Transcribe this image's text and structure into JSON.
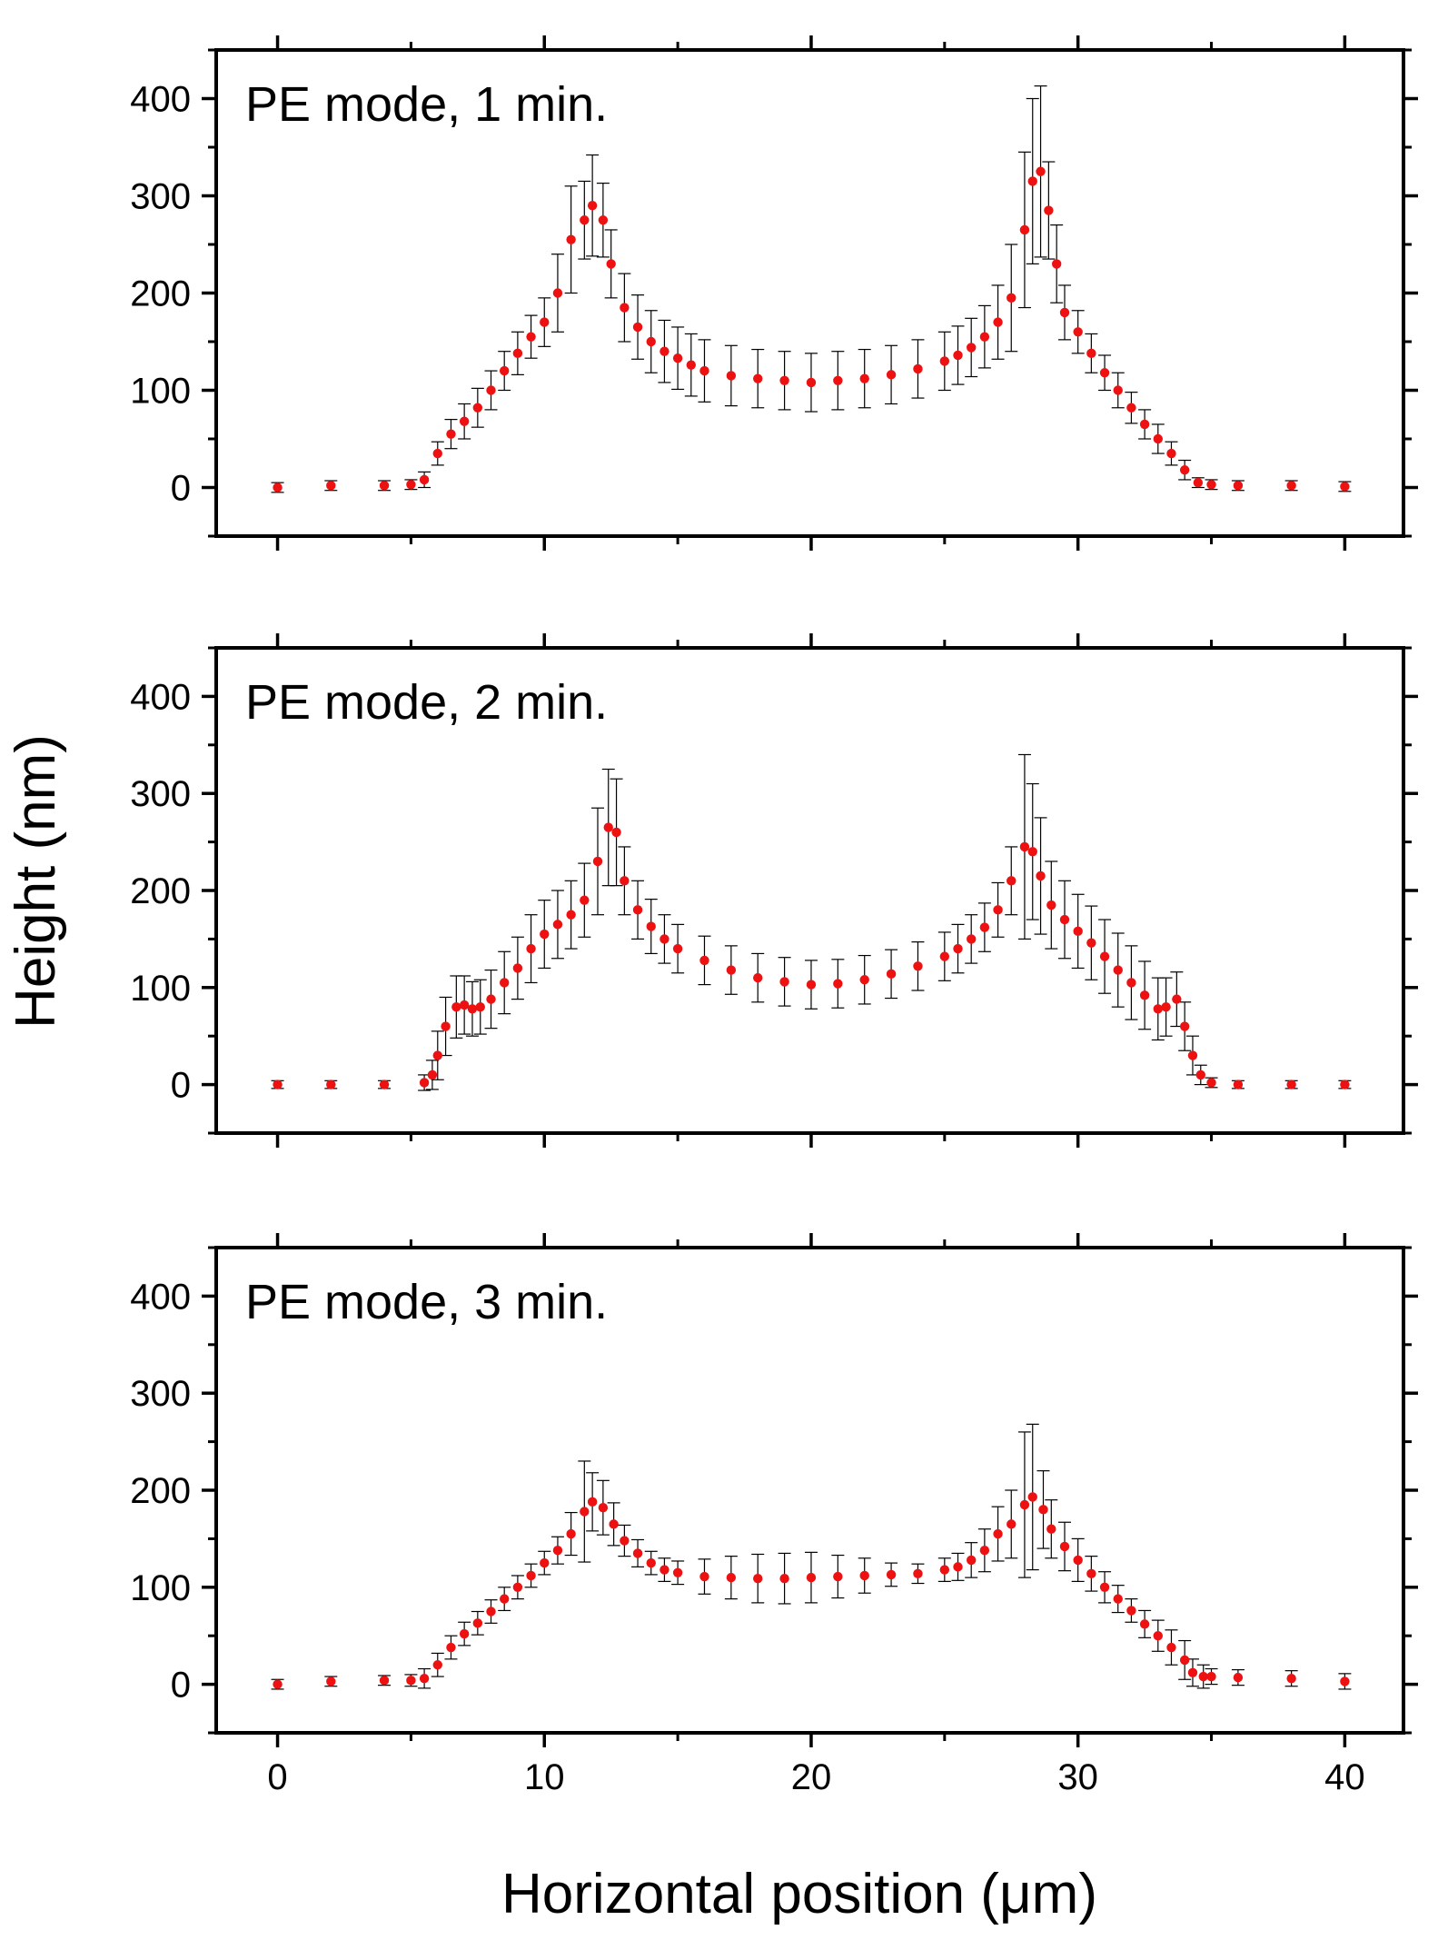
{
  "figure": {
    "ylabel": "Height (nm)",
    "xlabel": "Horizontal position (μm)"
  },
  "chart_data": [
    {
      "type": "scatter",
      "title": "PE mode, 1 min.",
      "xlabel": "Horizontal position (μm)",
      "ylabel": "Height (nm)",
      "xlim": [
        -2.3,
        42.2
      ],
      "ylim": [
        -50,
        450
      ],
      "xticks": [
        0,
        10,
        20,
        30,
        40
      ],
      "yticks": [
        0,
        100,
        200,
        300,
        400
      ],
      "grid": false,
      "marker_color": "#ee1111",
      "errorbar_color": "#000000",
      "series": [
        {
          "name": "PE mode, 1 min.",
          "x": [
            0,
            2,
            4,
            5,
            5.5,
            6,
            6.5,
            7,
            7.5,
            8,
            8.5,
            9,
            9.5,
            10,
            10.5,
            11,
            11.5,
            11.8,
            12.2,
            12.5,
            13,
            13.5,
            14,
            14.5,
            15,
            15.5,
            16,
            17,
            18,
            19,
            20,
            21,
            22,
            23,
            24,
            25,
            25.5,
            26,
            26.5,
            27,
            27.5,
            28,
            28.3,
            28.6,
            28.9,
            29.2,
            29.5,
            30,
            30.5,
            31,
            31.5,
            32,
            32.5,
            33,
            33.5,
            34,
            34.5,
            35,
            36,
            38,
            40
          ],
          "y": [
            0,
            2,
            2,
            3,
            8,
            35,
            55,
            68,
            82,
            100,
            120,
            138,
            155,
            170,
            200,
            255,
            275,
            290,
            275,
            230,
            185,
            165,
            150,
            140,
            133,
            126,
            120,
            115,
            112,
            110,
            108,
            110,
            112,
            116,
            122,
            130,
            136,
            144,
            155,
            170,
            195,
            265,
            315,
            325,
            285,
            230,
            180,
            160,
            138,
            118,
            100,
            82,
            65,
            50,
            35,
            18,
            5,
            3,
            2,
            2,
            1
          ],
          "error": [
            5,
            5,
            5,
            5,
            8,
            12,
            15,
            18,
            20,
            20,
            20,
            22,
            22,
            25,
            40,
            55,
            40,
            52,
            38,
            35,
            35,
            33,
            32,
            32,
            32,
            32,
            32,
            31,
            30,
            30,
            30,
            30,
            30,
            30,
            30,
            30,
            30,
            30,
            32,
            38,
            55,
            80,
            85,
            88,
            50,
            40,
            28,
            22,
            20,
            18,
            18,
            16,
            15,
            15,
            12,
            10,
            5,
            5,
            5,
            5,
            5
          ]
        }
      ]
    },
    {
      "type": "scatter",
      "title": "PE mode, 2 min.",
      "xlabel": "Horizontal position (μm)",
      "ylabel": "Height (nm)",
      "xlim": [
        -2.3,
        42.2
      ],
      "ylim": [
        -50,
        450
      ],
      "xticks": [
        0,
        10,
        20,
        30,
        40
      ],
      "yticks": [
        0,
        100,
        200,
        300,
        400
      ],
      "grid": false,
      "marker_color": "#ee1111",
      "errorbar_color": "#000000",
      "series": [
        {
          "name": "PE mode, 2 min.",
          "x": [
            0,
            2,
            4,
            5.5,
            5.8,
            6,
            6.3,
            6.7,
            7,
            7.3,
            7.6,
            8,
            8.5,
            9,
            9.5,
            10,
            10.5,
            11,
            11.5,
            12,
            12.4,
            12.7,
            13,
            13.5,
            14,
            14.5,
            15,
            16,
            17,
            18,
            19,
            20,
            21,
            22,
            23,
            24,
            25,
            25.5,
            26,
            26.5,
            27,
            27.5,
            28,
            28.3,
            28.6,
            29,
            29.5,
            30,
            30.5,
            31,
            31.5,
            32,
            32.5,
            33,
            33.3,
            33.7,
            34,
            34.3,
            34.6,
            35,
            36,
            38,
            40
          ],
          "y": [
            0,
            0,
            0,
            2,
            10,
            30,
            60,
            80,
            82,
            78,
            80,
            88,
            105,
            120,
            140,
            155,
            165,
            175,
            190,
            230,
            265,
            260,
            210,
            180,
            163,
            150,
            140,
            128,
            118,
            110,
            106,
            103,
            104,
            108,
            114,
            122,
            132,
            140,
            150,
            162,
            180,
            210,
            245,
            240,
            215,
            185,
            170,
            158,
            146,
            132,
            118,
            105,
            92,
            78,
            80,
            88,
            60,
            30,
            10,
            2,
            0,
            0,
            0
          ],
          "error": [
            4,
            4,
            4,
            8,
            15,
            25,
            30,
            32,
            30,
            28,
            28,
            30,
            32,
            32,
            35,
            35,
            35,
            35,
            38,
            55,
            60,
            55,
            35,
            30,
            28,
            25,
            25,
            25,
            25,
            25,
            25,
            25,
            25,
            25,
            25,
            25,
            25,
            25,
            25,
            25,
            28,
            35,
            95,
            70,
            60,
            45,
            40,
            38,
            38,
            38,
            38,
            38,
            35,
            32,
            30,
            28,
            25,
            20,
            10,
            5,
            4,
            4,
            4
          ]
        }
      ]
    },
    {
      "type": "scatter",
      "title": "PE mode, 3 min.",
      "xlabel": "Horizontal position (μm)",
      "ylabel": "Height (nm)",
      "xlim": [
        -2.3,
        42.2
      ],
      "ylim": [
        -50,
        450
      ],
      "xticks": [
        0,
        10,
        20,
        30,
        40
      ],
      "yticks": [
        0,
        100,
        200,
        300,
        400
      ],
      "grid": false,
      "marker_color": "#ee1111",
      "errorbar_color": "#000000",
      "series": [
        {
          "name": "PE mode, 3 min.",
          "x": [
            0,
            2,
            4,
            5,
            5.5,
            6,
            6.5,
            7,
            7.5,
            8,
            8.5,
            9,
            9.5,
            10,
            10.5,
            11,
            11.5,
            11.8,
            12.2,
            12.6,
            13,
            13.5,
            14,
            14.5,
            15,
            16,
            17,
            18,
            19,
            20,
            21,
            22,
            23,
            24,
            25,
            25.5,
            26,
            26.5,
            27,
            27.5,
            28,
            28.3,
            28.7,
            29,
            29.5,
            30,
            30.5,
            31,
            31.5,
            32,
            32.5,
            33,
            33.5,
            34,
            34.3,
            34.7,
            35,
            36,
            38,
            40
          ],
          "y": [
            0,
            3,
            4,
            4,
            6,
            20,
            38,
            52,
            63,
            75,
            88,
            100,
            112,
            125,
            138,
            155,
            178,
            188,
            182,
            165,
            148,
            135,
            125,
            118,
            115,
            111,
            110,
            109,
            109,
            110,
            111,
            112,
            113,
            114,
            118,
            121,
            128,
            138,
            155,
            165,
            185,
            193,
            180,
            160,
            142,
            128,
            114,
            100,
            88,
            76,
            62,
            50,
            38,
            25,
            12,
            8,
            8,
            7,
            6,
            3
          ],
          "error": [
            5,
            5,
            5,
            6,
            10,
            12,
            12,
            12,
            12,
            12,
            12,
            12,
            12,
            12,
            14,
            22,
            52,
            30,
            28,
            22,
            16,
            14,
            12,
            12,
            12,
            18,
            22,
            25,
            26,
            26,
            22,
            18,
            12,
            10,
            12,
            14,
            18,
            22,
            28,
            35,
            75,
            75,
            40,
            30,
            25,
            22,
            18,
            16,
            14,
            12,
            14,
            16,
            18,
            20,
            14,
            12,
            8,
            8,
            8,
            8
          ]
        }
      ]
    }
  ]
}
